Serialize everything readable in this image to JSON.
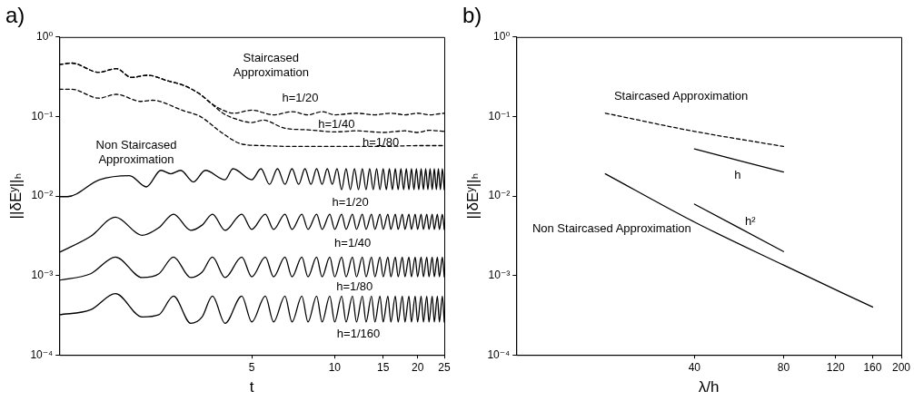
{
  "chart_data": [
    {
      "type": "line",
      "title": "a)",
      "xlabel": "t",
      "ylabel": "||δEʸ||ₕ",
      "log": "xy",
      "xlim": [
        1,
        25
      ],
      "xticks": [
        5,
        10,
        15,
        20,
        25
      ],
      "ylim": [
        0.0001,
        1
      ],
      "yticks": [
        {
          "value": 1,
          "label": "10⁰"
        },
        {
          "value": 0.1,
          "label": "10⁻¹"
        },
        {
          "value": 0.01,
          "label": "10⁻²"
        },
        {
          "value": 0.001,
          "label": "10⁻³"
        },
        {
          "value": 0.0001,
          "label": "10⁻⁴"
        }
      ],
      "x": [
        1,
        1.3,
        1.6,
        2,
        2.3,
        2.6,
        3,
        3.3,
        3.6,
        4,
        4.6,
        5,
        5.6,
        6,
        6.6,
        7,
        7.6,
        8,
        8.6,
        9,
        9.6,
        10,
        10.6,
        11,
        11.6,
        12,
        12.6,
        13,
        13.6,
        14,
        14.6,
        15,
        15.6,
        16,
        16.6,
        17,
        17.6,
        18,
        18.6,
        19,
        19.6,
        20,
        20.6,
        21,
        21.6,
        22,
        22.6,
        23,
        23.6,
        24,
        24.6,
        25
      ],
      "series": [
        {
          "color": "#000000",
          "line_style": "dashed",
          "x": [
            1,
            1.11,
            1.39,
            1.61,
            1.83,
            2.1,
            2.48,
            2.8,
            3.25,
            3.53,
            3.93,
            4.3,
            5,
            6,
            7,
            8,
            9,
            10,
            12,
            14,
            16,
            18,
            20,
            22,
            25
          ],
          "values": [
            0.45,
            0.47,
            0.36,
            0.4,
            0.31,
            0.33,
            0.28,
            0.25,
            0.19,
            0.15,
            0.12,
            0.11,
            0.12,
            0.105,
            0.115,
            0.105,
            0.115,
            0.105,
            0.11,
            0.105,
            0.11,
            0.105,
            0.11,
            0.105,
            0.11
          ]
        },
        {
          "color": "#000000",
          "line_style": "dashed",
          "x": [
            1,
            1.11,
            1.39,
            1.61,
            1.83,
            2.1,
            2.48,
            2.8,
            3.25,
            3.53,
            3.93,
            4.3,
            5,
            5.5,
            6.6,
            8,
            10,
            12,
            15,
            18,
            20,
            22,
            25
          ],
          "values": [
            0.45,
            0.47,
            0.36,
            0.4,
            0.31,
            0.33,
            0.28,
            0.25,
            0.19,
            0.15,
            0.11,
            0.095,
            0.084,
            0.09,
            0.071,
            0.068,
            0.064,
            0.066,
            0.063,
            0.066,
            0.063,
            0.067,
            0.065
          ]
        },
        {
          "color": "#000000",
          "line_style": "dashed",
          "x": [
            1,
            1.11,
            1.39,
            1.61,
            1.98,
            2.17,
            2.83,
            3.25,
            3.93,
            4.6,
            5.5,
            7,
            10,
            15,
            20,
            25
          ],
          "values": [
            0.22,
            0.22,
            0.17,
            0.19,
            0.155,
            0.16,
            0.118,
            0.1,
            0.061,
            0.045,
            0.043,
            0.042,
            0.042,
            0.042,
            0.043,
            0.043
          ]
        },
        {
          "color": "#000000",
          "x": [
            1,
            1.07,
            1.4,
            1.8,
            2.07,
            2.34,
            2.54,
            2.76,
            3.07,
            3.39,
            4,
            4.27,
            5,
            5.4,
            5.8,
            6.2,
            6.6,
            7,
            7.4,
            7.8,
            8.2,
            8.6,
            9,
            9.4,
            9.8,
            10.2,
            10.6,
            11,
            11.4,
            11.8,
            12.2,
            12.6,
            13,
            13.4,
            13.8,
            14.2,
            14.6,
            15,
            15.4,
            15.8,
            16.2,
            16.6,
            17,
            17.4,
            17.8,
            18.2,
            18.6,
            19,
            19.4,
            19.8,
            20.2,
            20.6,
            21,
            21.4,
            21.8,
            22.2,
            22.6,
            23,
            23.4,
            23.8,
            24.2,
            24.6,
            25
          ],
          "values": [
            0.0098,
            0.0098,
            0.016,
            0.018,
            0.013,
            0.021,
            0.019,
            0.021,
            0.015,
            0.021,
            0.016,
            0.022,
            0.016,
            0.022,
            0.014,
            0.022,
            0.014,
            0.022,
            0.014,
            0.022,
            0.014,
            0.022,
            0.014,
            0.022,
            0.014,
            0.022,
            0.012,
            0.022,
            0.012,
            0.022,
            0.012,
            0.022,
            0.012,
            0.022,
            0.012,
            0.022,
            0.012,
            0.022,
            0.012,
            0.022,
            0.012,
            0.022,
            0.012,
            0.022,
            0.012,
            0.022,
            0.012,
            0.022,
            0.012,
            0.022,
            0.012,
            0.022,
            0.012,
            0.022,
            0.012,
            0.022,
            0.012,
            0.022,
            0.012,
            0.022,
            0.012,
            0.022,
            0.012
          ]
        },
        {
          "color": "#000000",
          "values": [
            0.00195,
            0.0031,
            0.0054,
            0.0032,
            0.004,
            0.0059,
            0.0037,
            0.0043,
            0.0059,
            0.0037,
            0.0059,
            0.0038,
            0.0059,
            0.0038,
            0.0059,
            0.0038,
            0.0059,
            0.0038,
            0.0059,
            0.0038,
            0.0059,
            0.0038,
            0.0059,
            0.0038,
            0.0059,
            0.0038,
            0.0059,
            0.0038,
            0.0059,
            0.0038,
            0.0059,
            0.0038,
            0.0059,
            0.0038,
            0.0059,
            0.0038,
            0.0059,
            0.0038,
            0.0059,
            0.0038,
            0.0059,
            0.0038,
            0.0059,
            0.0038,
            0.0059,
            0.0038,
            0.0059,
            0.0038,
            0.0059,
            0.0038,
            0.0059,
            0.0038
          ]
        },
        {
          "color": "#000000",
          "values": [
            0.00087,
            0.00105,
            0.0017,
            0.00094,
            0.00105,
            0.0017,
            0.00094,
            0.0011,
            0.0017,
            0.00094,
            0.0017,
            0.00096,
            0.0017,
            0.00096,
            0.0017,
            0.00096,
            0.0017,
            0.00096,
            0.0017,
            0.00096,
            0.0017,
            0.00096,
            0.0017,
            0.00096,
            0.0017,
            0.00096,
            0.0017,
            0.00096,
            0.0017,
            0.00096,
            0.0017,
            0.00096,
            0.0017,
            0.00096,
            0.0017,
            0.00096,
            0.0017,
            0.00096,
            0.0017,
            0.00096,
            0.0017,
            0.00096,
            0.0017,
            0.00096,
            0.0017,
            0.00096,
            0.0017,
            0.00096,
            0.0017,
            0.00096,
            0.0017,
            0.00096
          ]
        },
        {
          "color": "#000000",
          "values": [
            0.00032,
            0.00037,
            0.00059,
            0.0003,
            0.00032,
            0.00055,
            0.00025,
            0.0003,
            0.00055,
            0.00025,
            0.00055,
            0.00026,
            0.00055,
            0.00026,
            0.00055,
            0.00026,
            0.00055,
            0.00026,
            0.00055,
            0.00026,
            0.00055,
            0.00026,
            0.00055,
            0.00026,
            0.00055,
            0.00026,
            0.00055,
            0.00026,
            0.00055,
            0.00026,
            0.00055,
            0.00026,
            0.00055,
            0.00026,
            0.00055,
            0.00026,
            0.00055,
            0.00026,
            0.00055,
            0.00026,
            0.00055,
            0.00026,
            0.00055,
            0.00026,
            0.00055,
            0.00026,
            0.00055,
            0.00026,
            0.00055,
            0.00026,
            0.00055,
            0.00026
          ]
        }
      ],
      "annotations": [
        "Staircased Approximation",
        "h=1/20",
        "h=1/40",
        "h=1/80",
        "Non Staircased Approximation",
        "h=1/20",
        "h=1/40",
        "h=1/80",
        "h=1/160"
      ]
    },
    {
      "type": "line",
      "title": "b)",
      "xlabel": "λ/h",
      "ylabel": "||δEʸ||ₕ",
      "log": "xy",
      "xlim": [
        10,
        200
      ],
      "xticks": [
        40,
        80,
        120,
        160,
        200
      ],
      "ylim": [
        0.0001,
        1
      ],
      "yticks": [
        {
          "value": 1,
          "label": "10⁰"
        },
        {
          "value": 0.1,
          "label": "10⁻¹"
        },
        {
          "value": 0.01,
          "label": "10⁻²"
        },
        {
          "value": 0.001,
          "label": "10⁻³"
        },
        {
          "value": 0.0001,
          "label": "10⁻⁴"
        }
      ],
      "series": [
        {
          "color": "#000000",
          "line_style": "dashed",
          "x": [
            20,
            40,
            80
          ],
          "values": [
            0.11,
            0.065,
            0.042
          ]
        },
        {
          "color": "#000000",
          "x": [
            20,
            40,
            80,
            160
          ],
          "values": [
            0.019,
            0.0047,
            0.00135,
            0.0004
          ]
        },
        {
          "color": "#000000",
          "x": [
            40,
            80
          ],
          "values": [
            0.039,
            0.02
          ]
        },
        {
          "color": "#000000",
          "x": [
            40,
            80
          ],
          "values": [
            0.0079,
            0.002
          ]
        }
      ],
      "annotations": [
        "Staircased Approximation",
        "Non Staircased Approximation",
        "h",
        "h²"
      ]
    }
  ]
}
